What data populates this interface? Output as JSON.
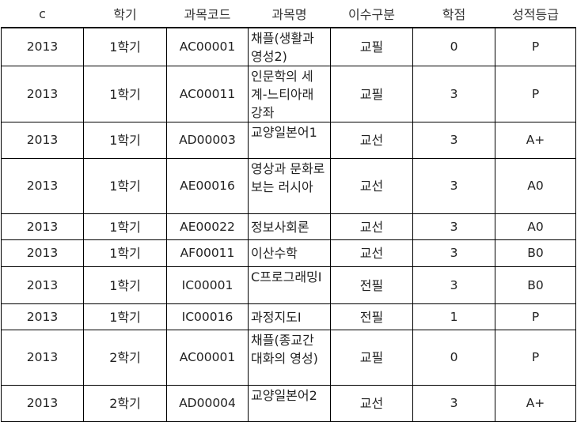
{
  "table": {
    "headers": [
      "c",
      "학기",
      "과목코드",
      "과목명",
      "이수구분",
      "학점",
      "성적등급"
    ],
    "rows": [
      {
        "year": "2013",
        "semester": "1학기",
        "code": "AC00001",
        "name": "채플(생활과 영성2)",
        "category": "교필",
        "credits": "0",
        "grade": "P"
      },
      {
        "year": "2013",
        "semester": "1학기",
        "code": "AC00011",
        "name": "인문학의 세계-느티아래 강좌",
        "category": "교필",
        "credits": "3",
        "grade": "P"
      },
      {
        "year": "2013",
        "semester": "1학기",
        "code": "AD00003",
        "name": "교양일본어1",
        "category": "교선",
        "credits": "3",
        "grade": "A+"
      },
      {
        "year": "2013",
        "semester": "1학기",
        "code": "AE00016",
        "name": "영상과 문화로 보는 러시아",
        "category": "교선",
        "credits": "3",
        "grade": "A0"
      },
      {
        "year": "2013",
        "semester": "1학기",
        "code": "AE00022",
        "name": "정보사회론",
        "category": "교선",
        "credits": "3",
        "grade": "A0"
      },
      {
        "year": "2013",
        "semester": "1학기",
        "code": "AF00011",
        "name": "이산수학",
        "category": "교선",
        "credits": "3",
        "grade": "B0"
      },
      {
        "year": "2013",
        "semester": "1학기",
        "code": "IC00001",
        "name": "C프로그래밍Ⅰ",
        "category": "전필",
        "credits": "3",
        "grade": "B0"
      },
      {
        "year": "2013",
        "semester": "1학기",
        "code": "IC00016",
        "name": "과정지도Ⅰ",
        "category": "전필",
        "credits": "1",
        "grade": "P"
      },
      {
        "year": "2013",
        "semester": "2학기",
        "code": "AC00001",
        "name": "채플(종교간 대화의 영성)",
        "category": "교필",
        "credits": "0",
        "grade": "P"
      },
      {
        "year": "2013",
        "semester": "2학기",
        "code": "AD00004",
        "name": "교양일본어2",
        "category": "교선",
        "credits": "3",
        "grade": "A+"
      }
    ]
  }
}
